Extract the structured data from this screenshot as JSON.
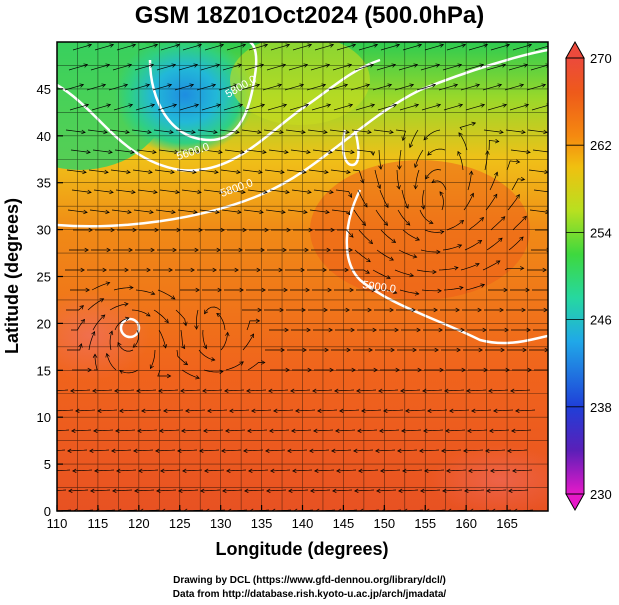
{
  "chart_data": {
    "type": "heatmap",
    "title": "GSM 18Z01Oct2024 (500.0hPa)",
    "xlabel": "Longitude (degrees)",
    "ylabel": "Latitude  (degrees)",
    "xlim": [
      110,
      170
    ],
    "ylim": [
      0,
      50
    ],
    "x_ticks": [
      110,
      115,
      120,
      125,
      130,
      135,
      140,
      145,
      150,
      155,
      160,
      165
    ],
    "y_ticks": [
      0,
      5,
      10,
      15,
      20,
      25,
      30,
      35,
      40,
      45
    ],
    "colorbar": {
      "min": 230,
      "max": 270,
      "ticks": [
        230,
        238,
        246,
        254,
        262,
        270
      ],
      "colors": [
        "#e619c8",
        "#5a1fb8",
        "#1f3fd8",
        "#20a8e8",
        "#26d8a0",
        "#3ed83e",
        "#b8e020",
        "#f0c010",
        "#f58a10",
        "#ee5a1a",
        "#ec4a3c"
      ]
    },
    "contours": [
      {
        "label": "5800.0",
        "level": 5800.0
      },
      {
        "label": "5600.0",
        "level": 5600.0
      },
      {
        "label": "5800.0",
        "level": 5800.0
      },
      {
        "label": "5900.0",
        "level": 5900.0
      }
    ],
    "grid": true,
    "streamlines": true
  },
  "credits": {
    "line1": "Drawing by DCL (https://www.gfd-dennou.org/library/dcl/)",
    "line2": "Data from http://database.rish.kyoto-u.ac.jp/arch/jmadata/"
  }
}
